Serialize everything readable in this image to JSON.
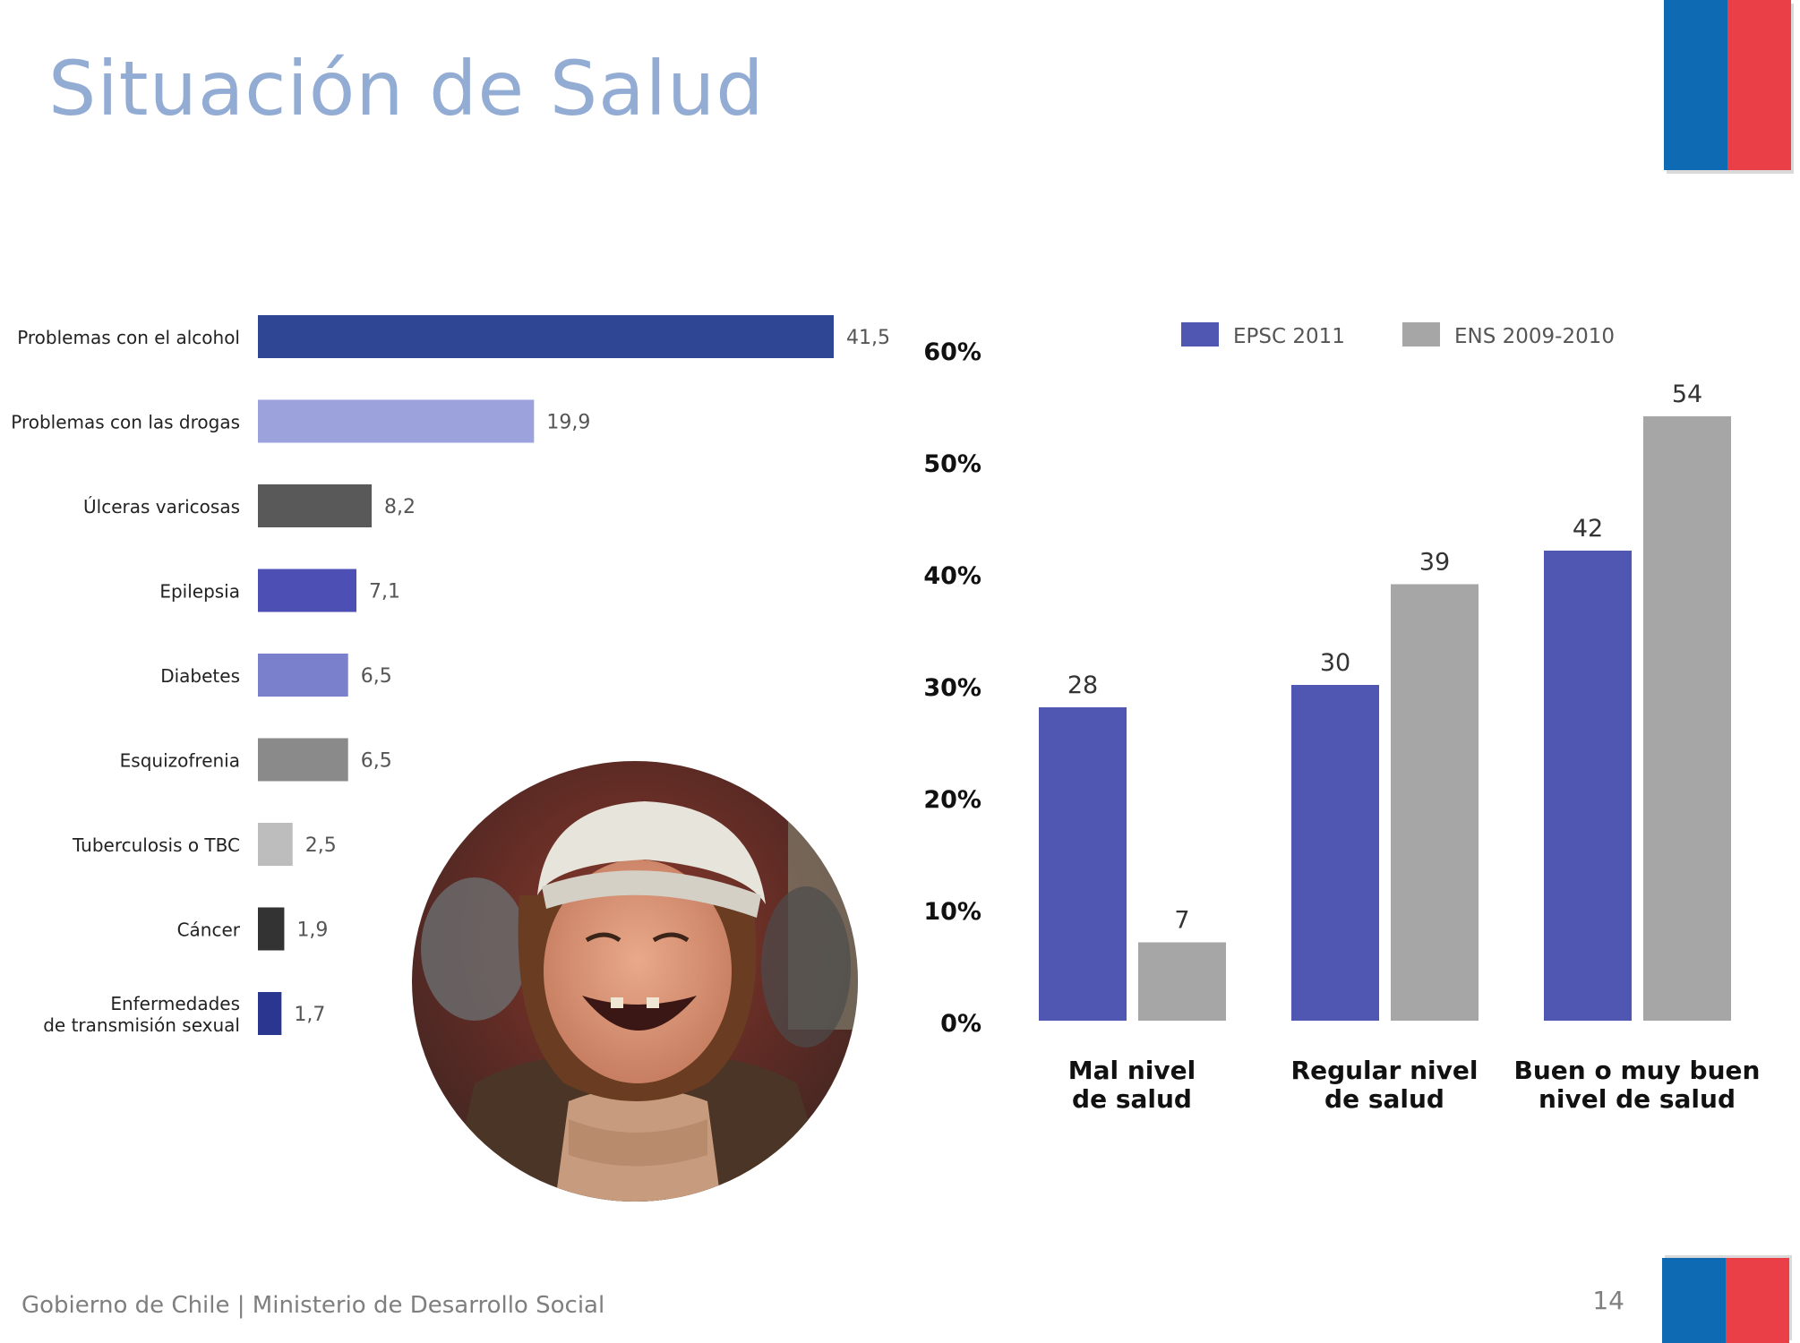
{
  "page": {
    "title": "Situación de Salud",
    "footer": "Gobierno de Chile | Ministerio de Desarrollo Social",
    "page_number": "14",
    "brand_colors": {
      "blue": "#0d6ab3",
      "red": "#ea3f46",
      "title": "#93acd4"
    }
  },
  "photo": {
    "subject": "smiling woman wearing a white knit cap"
  },
  "chart_data": [
    {
      "type": "bar",
      "orientation": "horizontal",
      "categories": [
        "Problemas con el alcohol",
        "Problemas con las drogas",
        "Úlceras varicosas",
        "Epilepsia",
        "Diabetes",
        "Esquizofrenia",
        "Tuberculosis o TBC",
        "Cáncer",
        "Enfermedades|de transmisión sexual"
      ],
      "values": [
        41.5,
        19.9,
        8.2,
        7.1,
        6.5,
        6.5,
        2.5,
        1.9,
        1.7
      ],
      "value_labels": [
        "41,5",
        "19,9",
        "8,2",
        "7,1",
        "6,5",
        "6,5",
        "2,5",
        "1,9",
        "1,7"
      ],
      "colors": [
        "#2e4693",
        "#9ba2dc",
        "#595959",
        "#4d4fb5",
        "#7a80cc",
        "#8a8a8a",
        "#bdbdbd",
        "#333333",
        "#2a3690"
      ],
      "xlim": [
        0,
        41.5
      ],
      "grid": false
    },
    {
      "type": "bar",
      "categories": [
        "Mal nivel|de salud",
        "Regular nivel|de salud",
        "Buen o muy buen|nivel de salud"
      ],
      "series": [
        {
          "name": "EPSC 2011",
          "values": [
            28,
            30,
            42
          ],
          "labels": [
            "28",
            "30",
            "42"
          ],
          "color": "#4f57b3"
        },
        {
          "name": "ENS 2009-2010",
          "values": [
            7,
            39,
            54
          ],
          "labels": [
            "7",
            "39",
            "54"
          ],
          "color": "#a6a6a6"
        }
      ],
      "yticks": [
        "0%",
        "10%",
        "20%",
        "30%",
        "40%",
        "50%",
        "60%"
      ],
      "ylim": [
        0,
        60
      ],
      "legend_position": "top",
      "grid": false
    }
  ]
}
